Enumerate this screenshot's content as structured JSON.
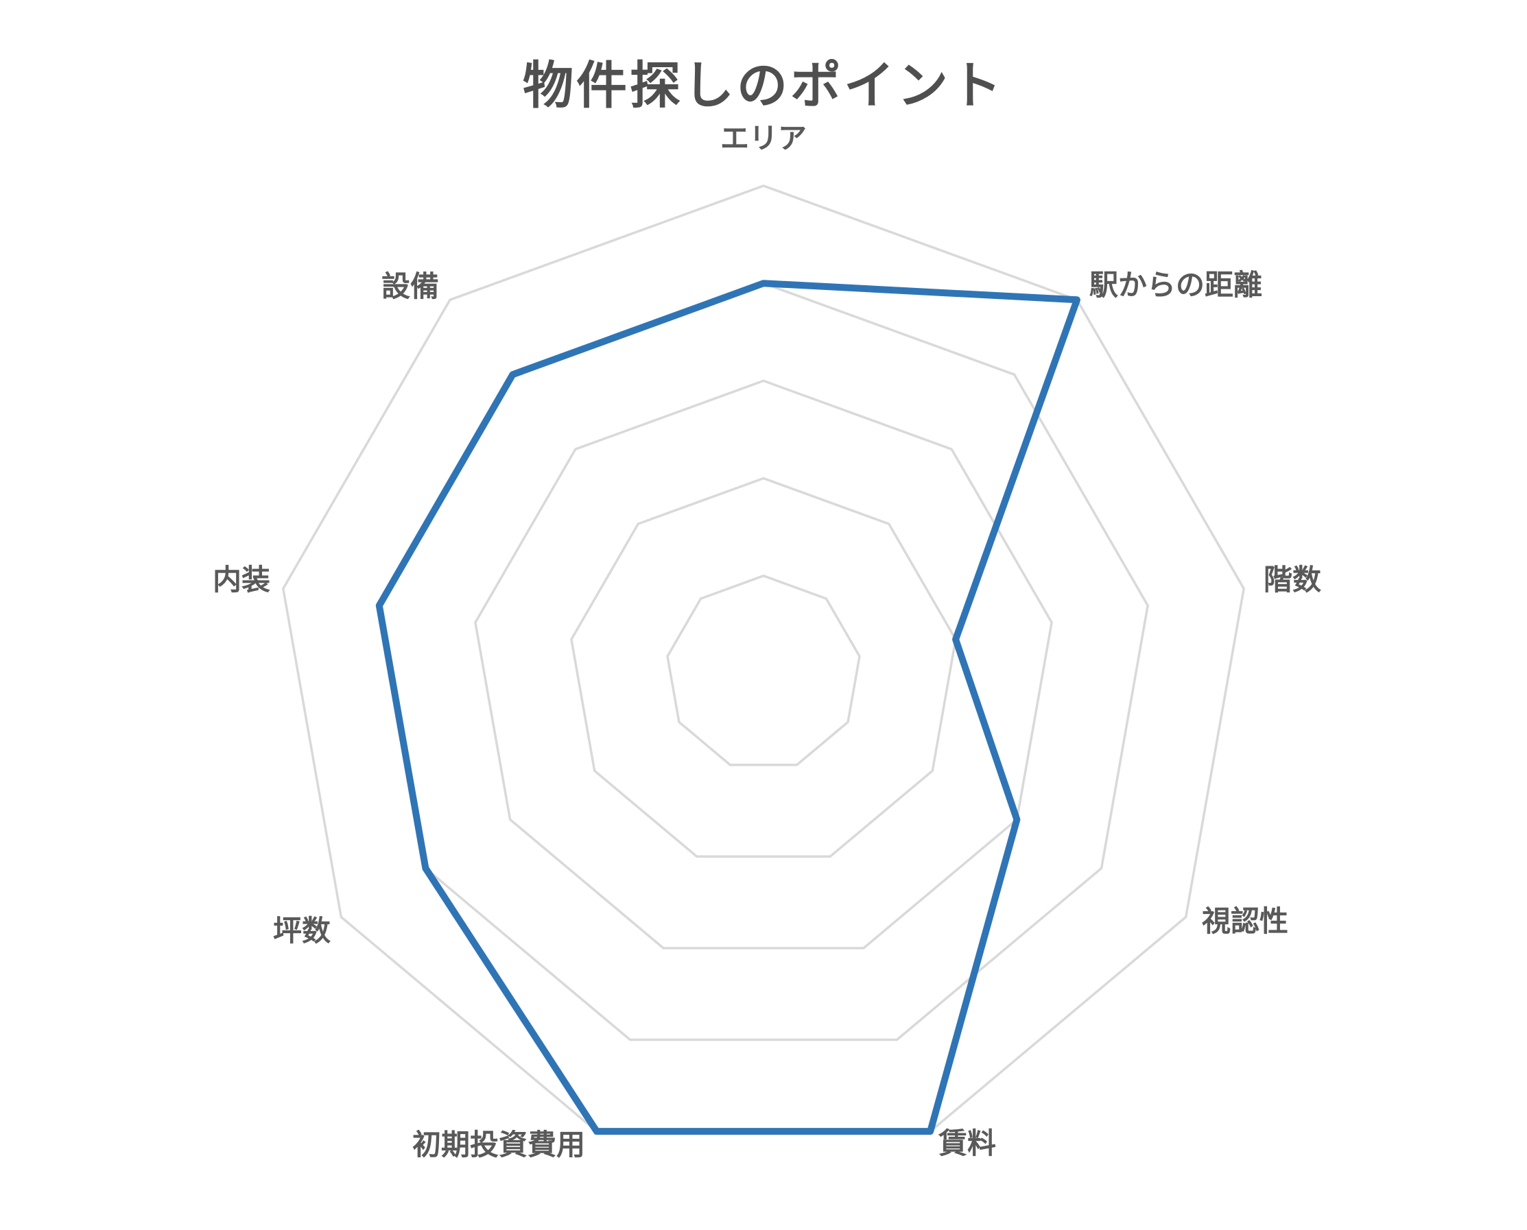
{
  "chart_data": {
    "type": "radar",
    "title": "物件探しのポイント",
    "categories": [
      "エリア",
      "駅からの距離",
      "階数",
      "視認性",
      "賃料",
      "初期投資費用",
      "坪数",
      "内装",
      "設備"
    ],
    "values": [
      4,
      5,
      2,
      3,
      5,
      5,
      4,
      4,
      4
    ],
    "value_min": 0,
    "value_max": 5,
    "ring_count": 5,
    "grid": "on",
    "spokes": "off",
    "tick_labels": "none",
    "legend": "none",
    "series_color": "#2f75b6",
    "grid_color": "#d9d9d9",
    "label_color": "#595959",
    "title_color": "#4f4f4f",
    "background_color": "#ffffff"
  }
}
